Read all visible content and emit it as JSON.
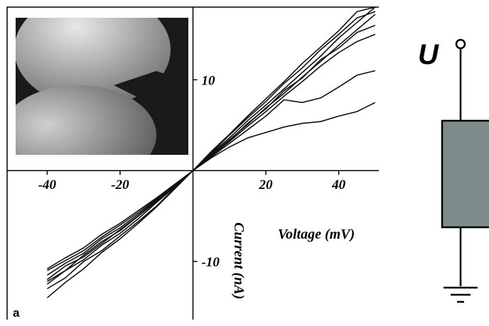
{
  "chart_data": {
    "type": "line",
    "x_label": "Voltage (mV)",
    "y_label": "Current (nA)",
    "panel_label": "a",
    "circuit_label": "U",
    "color": "#111111",
    "xlim": [
      -51,
      51
    ],
    "ylim": [
      -16.4,
      18
    ],
    "xticks": [
      -40,
      -20,
      20,
      40
    ],
    "yticks": [
      -10,
      10
    ],
    "x": [
      -40,
      -35,
      -30,
      -25,
      -20,
      -15,
      -10,
      -5,
      0,
      5,
      10,
      15,
      20,
      25,
      30,
      35,
      40,
      45,
      50
    ],
    "series": [
      {
        "values": [
          -12.5,
          -11,
          -9.8,
          -8.2,
          -6.9,
          -5.3,
          -3.5,
          -1.8,
          0,
          1.9,
          3.6,
          5.5,
          7.2,
          9,
          10.8,
          12.6,
          14.6,
          16.3,
          18
        ]
      },
      {
        "values": [
          -13,
          -11.8,
          -10,
          -8.8,
          -7.2,
          -5.6,
          -3.9,
          -1.9,
          0,
          2,
          3.9,
          5.8,
          7.6,
          9.6,
          11.3,
          13.3,
          15,
          16.8,
          17.5
        ]
      },
      {
        "values": [
          -11.5,
          -10.2,
          -9.1,
          -7.5,
          -6.3,
          -4.8,
          -3.2,
          -1.6,
          0,
          1.8,
          3.4,
          5.1,
          6.9,
          8.5,
          10.3,
          12,
          13.8,
          15.5,
          17.2
        ]
      },
      {
        "values": [
          -12,
          -10.5,
          -9.5,
          -8,
          -6.5,
          -5,
          -3.4,
          -1.7,
          0,
          1.7,
          3.3,
          5.2,
          6.8,
          8.8,
          10.2,
          12.2,
          13.5,
          15.2,
          16
        ]
      },
      {
        "values": [
          -14,
          -12.3,
          -10.8,
          -9,
          -7.5,
          -5.8,
          -4,
          -2,
          0,
          2.1,
          4,
          6,
          7.9,
          9.8,
          11.8,
          13.6,
          15.4,
          17.5,
          18
        ]
      },
      {
        "values": [
          -10.8,
          -9.6,
          -8.5,
          -7,
          -5.8,
          -4.4,
          -3,
          -1.5,
          0,
          1.6,
          3.2,
          4.9,
          6.5,
          8.2,
          9.8,
          11.5,
          13,
          14.2,
          15
        ]
      },
      {
        "values": [
          -11,
          -9.9,
          -8.8,
          -7.3,
          -6,
          -4.6,
          -3.1,
          -1.6,
          0,
          1.5,
          3,
          4.5,
          6,
          7.8,
          7.5,
          8,
          9.2,
          10.5,
          11
        ]
      },
      {
        "values": [
          -12.2,
          -11,
          -9.3,
          -7.8,
          -6.6,
          -5,
          -3.3,
          -1.7,
          0,
          1.4,
          2.6,
          3.6,
          4.2,
          4.8,
          5.2,
          5.4,
          6,
          6.5,
          7.5
        ]
      }
    ]
  }
}
